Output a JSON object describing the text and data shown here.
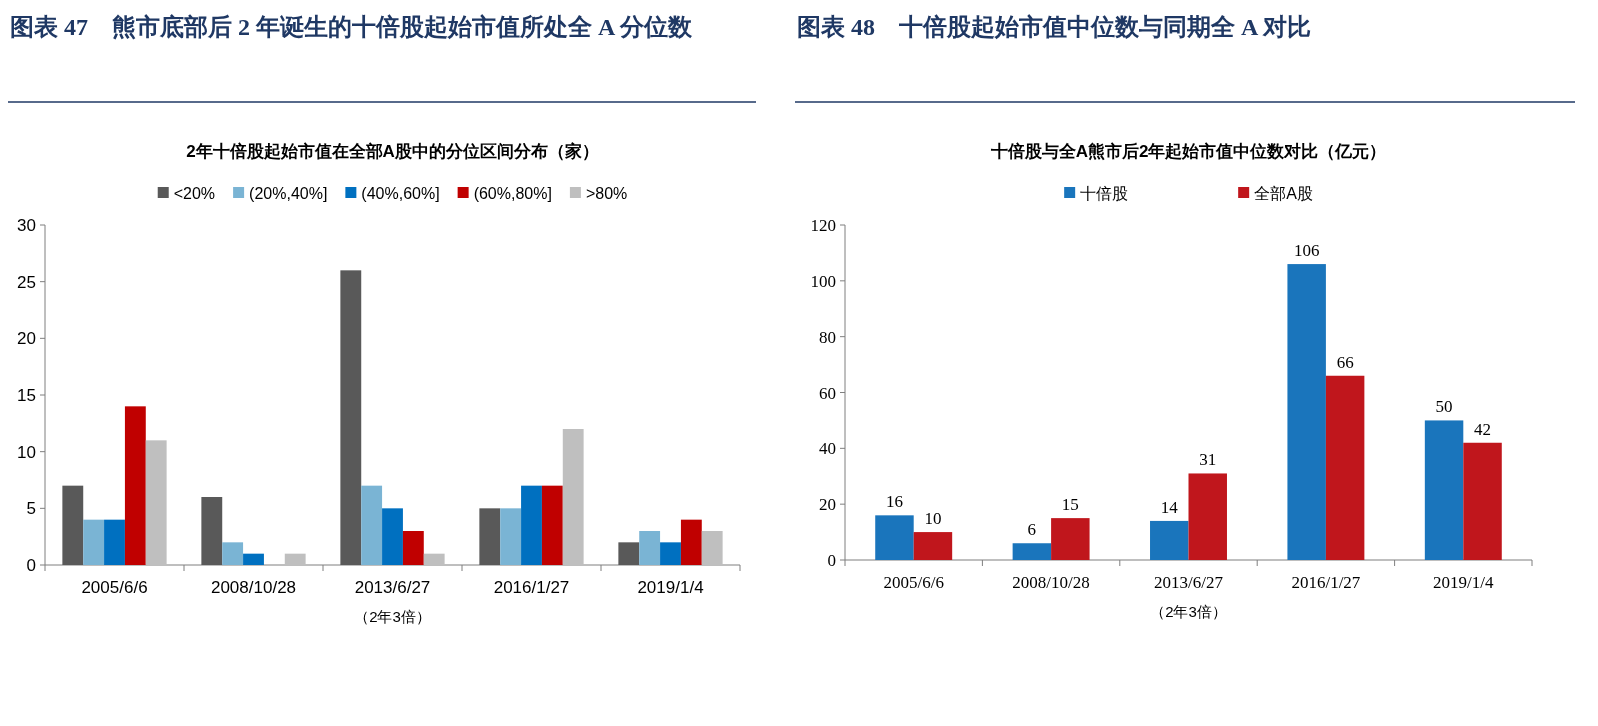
{
  "chart_data": [
    {
      "type": "bar",
      "title": "图表 47　熊市底部后 2 年诞生的十倍股起始市值所处全 A 分位数",
      "subtitle": "2年十倍股起始市值在全部A股中的分位区间分布（家）",
      "xlabel": "（2年3倍）",
      "categories": [
        "2005/6/6",
        "2008/10/28",
        "2013/6/27",
        "2016/1/27",
        "2019/1/4"
      ],
      "ylim": [
        0,
        30
      ],
      "yticks": [
        0,
        5,
        10,
        15,
        20,
        25,
        30
      ],
      "legend": "top",
      "series": [
        {
          "name": "<20%",
          "color": "#595959",
          "values": [
            7,
            6,
            26,
            5,
            2
          ]
        },
        {
          "name": "(20%,40%]",
          "color": "#7ab4d4",
          "values": [
            4,
            2,
            7,
            5,
            3
          ]
        },
        {
          "name": "(40%,60%]",
          "color": "#0070c0",
          "values": [
            4,
            1,
            5,
            7,
            2
          ]
        },
        {
          "name": "(60%,80%]",
          "color": "#c00000",
          "values": [
            14,
            0,
            3,
            7,
            4
          ]
        },
        {
          "name": ">80%",
          "color": "#bfbfbf",
          "values": [
            11,
            1,
            1,
            12,
            3
          ]
        }
      ]
    },
    {
      "type": "bar",
      "title": "图表 48　十倍股起始市值中位数与同期全 A 对比",
      "subtitle": "十倍股与全A熊市后2年起始市值中位数对比（亿元）",
      "xlabel": "（2年3倍）",
      "categories": [
        "2005/6/6",
        "2008/10/28",
        "2013/6/27",
        "2016/1/27",
        "2019/1/4"
      ],
      "ylim": [
        0,
        120
      ],
      "yticks": [
        0,
        20,
        40,
        60,
        80,
        100,
        120
      ],
      "legend": "top",
      "data_labels": true,
      "series": [
        {
          "name": "十倍股",
          "color": "#1a75bc",
          "values": [
            16,
            6,
            14,
            106,
            50
          ]
        },
        {
          "name": "全部A股",
          "color": "#c0161c",
          "values": [
            10,
            15,
            31,
            66,
            42
          ]
        }
      ]
    }
  ]
}
